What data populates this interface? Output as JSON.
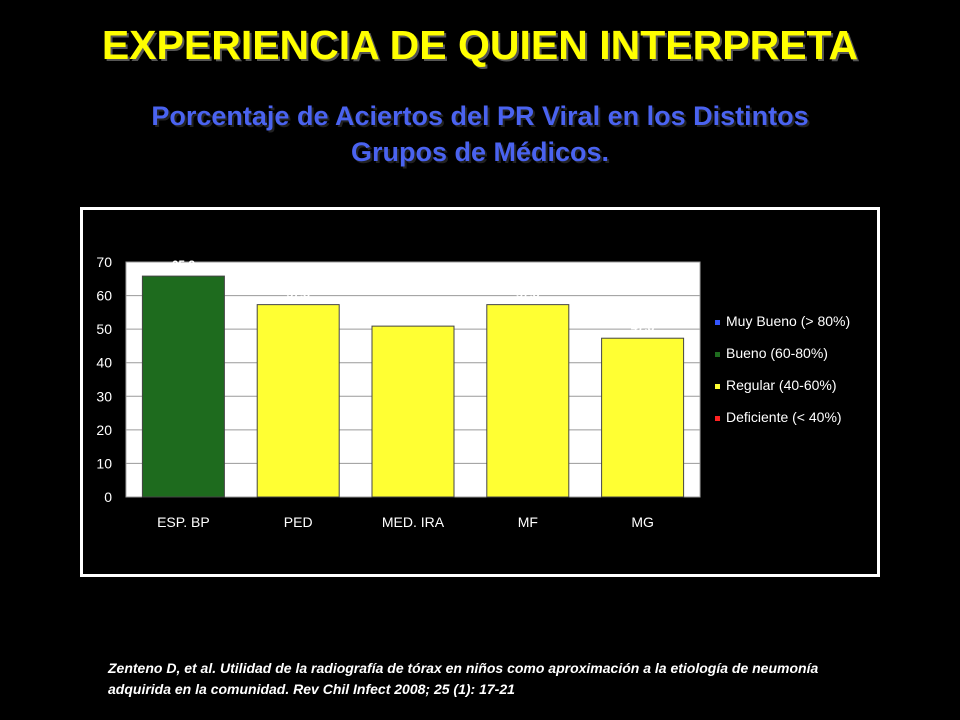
{
  "slide": {
    "title": "EXPERIENCIA DE QUIEN INTERPRETA",
    "subtitle_line1": "Porcentaje de Aciertos del PR Viral en los Distintos",
    "subtitle_line2": "Grupos de Médicos.",
    "citation_line1": "Zenteno D, et al. Utilidad de la radiografía de tórax en niños como aproximación a la etiología de neumonía",
    "citation_line2": "adquirida en la comunidad. Rev Chil Infect 2008; 25 (1): 17-21"
  },
  "chart_data": {
    "type": "bar",
    "categories": [
      "ESP. BP",
      "PED",
      "MED. IRA",
      "MF",
      "MG"
    ],
    "values": [
      65.8,
      57.3,
      50.9,
      57.3,
      47.3
    ],
    "value_labels": [
      "65.8",
      "57.3",
      "50.9",
      "57.3",
      "47.3"
    ],
    "bar_colors": [
      "#1e6b1e",
      "#ffff33",
      "#ffff33",
      "#ffff33",
      "#ffff33"
    ],
    "yticks": [
      "0",
      "10",
      "20",
      "30",
      "40",
      "50",
      "60",
      "70"
    ],
    "ylim": [
      0,
      70
    ],
    "grid": true,
    "legend_position": "right",
    "legend": [
      {
        "label": "Muy Bueno (> 80%)",
        "color": "#3355ff"
      },
      {
        "label": "Bueno (60-80%)",
        "color": "#1e6b1e"
      },
      {
        "label": "Regular (40-60%)",
        "color": "#ffff33"
      },
      {
        "label": "Deficiente (< 40%)",
        "color": "#ff2222"
      }
    ],
    "plot_background": "#ffffff",
    "text_color": "#ffffff"
  }
}
